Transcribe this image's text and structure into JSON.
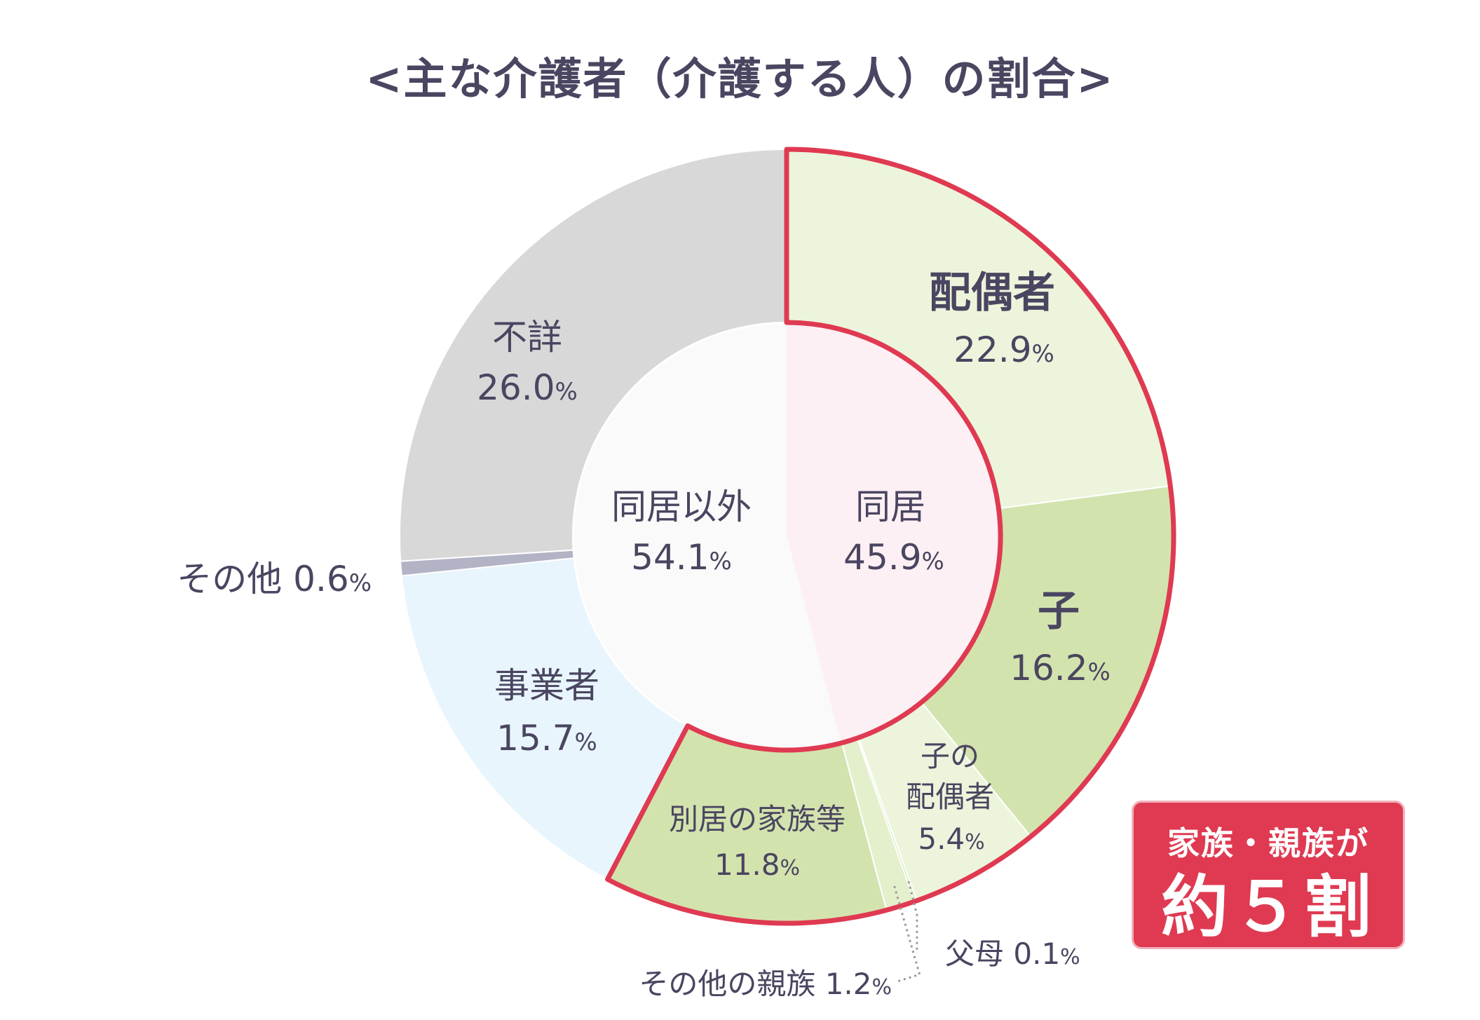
{
  "chart_data": {
    "type": "pie",
    "title": "<主な介護者（介護する人）の割合>",
    "outer_ring": [
      {
        "label": "配偶者",
        "value": 22.9,
        "value_text": "22.9",
        "unit": "%",
        "color": "#ecf5dc"
      },
      {
        "label": "子",
        "value": 16.2,
        "value_text": "16.2",
        "unit": "%",
        "color": "#d3e3ae"
      },
      {
        "label": "子の配偶者",
        "label_lines": [
          "子の",
          "配偶者"
        ],
        "value": 5.4,
        "value_text": "5.4",
        "unit": "%",
        "color": "#ecf5dc"
      },
      {
        "label": "父母",
        "value": 0.1,
        "value_text": "0.1",
        "unit": "%",
        "color": "#d3e3ae"
      },
      {
        "label": "その他の親族",
        "value": 1.2,
        "value_text": "1.2",
        "unit": "%",
        "color": "#e4f0cc"
      },
      {
        "label": "別居の家族等",
        "value": 11.8,
        "value_text": "11.8",
        "unit": "%",
        "color": "#d3e3ae"
      },
      {
        "label": "事業者",
        "value": 15.7,
        "value_text": "15.7",
        "unit": "%",
        "color": "#e8f5fc"
      },
      {
        "label": "その他",
        "value": 0.6,
        "value_text": "0.6",
        "unit": "%",
        "color": "#b3b3c6"
      },
      {
        "label": "不詳",
        "value": 26.0,
        "value_text": "26.0",
        "unit": "%",
        "color": "#d8d8d8"
      }
    ],
    "inner_ring": [
      {
        "label": "同居",
        "value": 45.9,
        "value_text": "45.9",
        "unit": "%",
        "color": "#fcf0f4"
      },
      {
        "label": "同居以外",
        "value": 54.1,
        "value_text": "54.1",
        "unit": "%",
        "color": "#fafafa"
      }
    ],
    "highlight": {
      "color": "#df3a52"
    }
  },
  "callout": {
    "line1": "家族・親族が",
    "line2": "約５割"
  }
}
